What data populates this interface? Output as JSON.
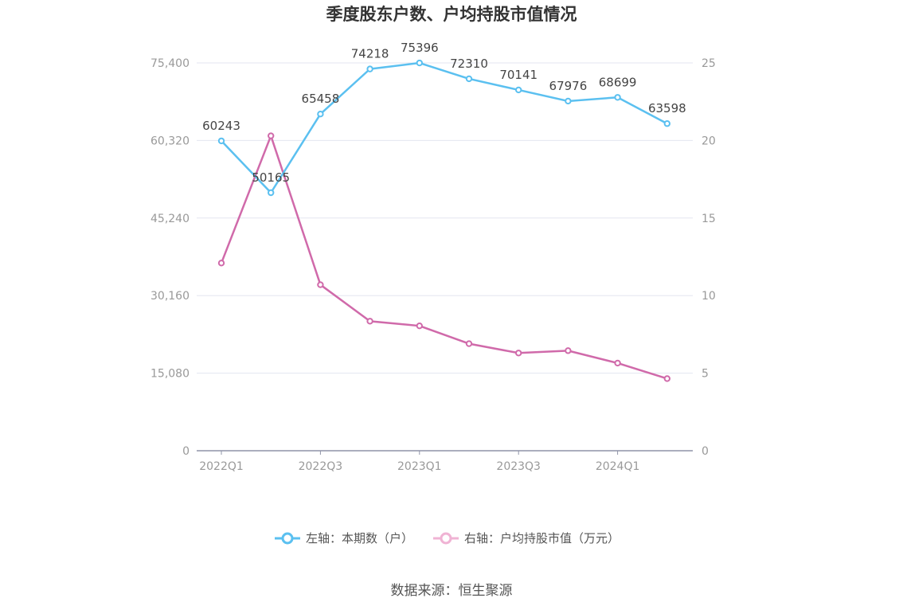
{
  "chart_data": {
    "type": "line",
    "title": "季度股东户数、户均持股市值情况",
    "categories": [
      "2022Q1",
      "2022Q2",
      "2022Q3",
      "2022Q4",
      "2023Q1",
      "2023Q2",
      "2023Q3",
      "2023Q4",
      "2024Q1",
      "2024Q2"
    ],
    "x_tick_labels": [
      "2022Q1",
      "2022Q3",
      "2023Q1",
      "2023Q3",
      "2024Q1"
    ],
    "left_axis": {
      "ylim": [
        0,
        75400
      ],
      "ticks": [
        "0",
        "15,080",
        "30,160",
        "45,240",
        "60,320",
        "75,400"
      ]
    },
    "right_axis": {
      "ylim": [
        0,
        25
      ],
      "ticks": [
        "0",
        "5",
        "10",
        "15",
        "20",
        "25"
      ]
    },
    "series": [
      {
        "name": "左轴：本期数（户）",
        "axis": "left",
        "color": "#5bc0f0",
        "values": [
          60243,
          50165,
          65458,
          74218,
          75396,
          72310,
          70141,
          67976,
          68699,
          63598
        ],
        "labels": [
          "60243",
          "50165",
          "65458",
          "74218",
          "75396",
          "72310",
          "70141",
          "67976",
          "68699",
          "63598"
        ]
      },
      {
        "name": "右轴：户均持股市值（万元）",
        "axis": "right",
        "color": "#d06aaa",
        "values": [
          12.1,
          20.3,
          10.7,
          8.35,
          8.05,
          6.9,
          6.3,
          6.45,
          5.65,
          4.65
        ]
      }
    ],
    "legend": "bottom-center",
    "grid": true
  },
  "source": "数据来源：恒生聚源"
}
